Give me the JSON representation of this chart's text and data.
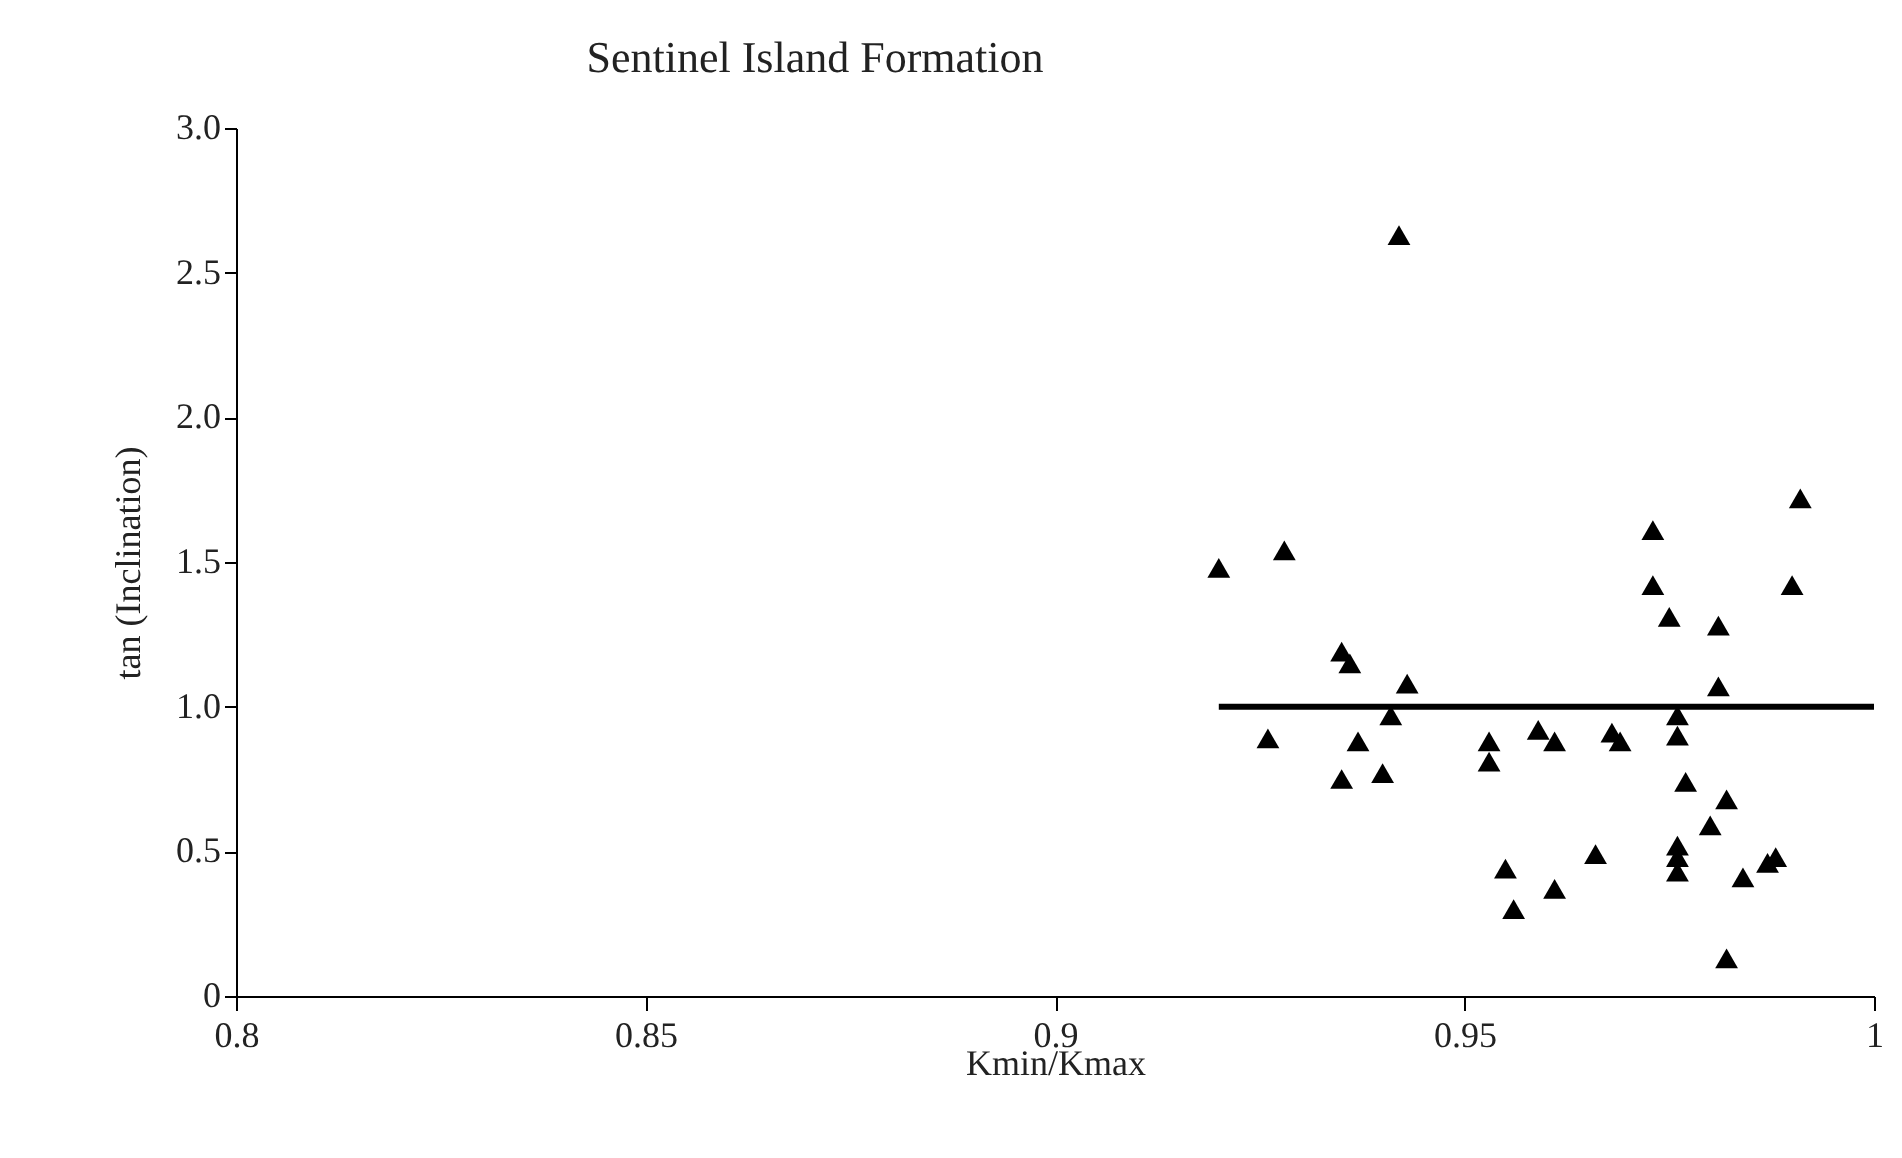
{
  "chart_data": {
    "type": "scatter",
    "title": "Sentinel Island Formation",
    "xlabel": "Kmin/Kmax",
    "ylabel": "tan (Inclination)",
    "xlim": [
      0.8,
      1
    ],
    "xticks": [
      0.8,
      0.85,
      0.9,
      0.95,
      1
    ],
    "ylim": [
      0,
      3
    ],
    "yticks": [
      0,
      {
        "value": 0.5,
        "label": "0.5"
      },
      {
        "value": 1,
        "label": "1.0"
      },
      {
        "value": 1.5,
        "label": "1.5"
      },
      {
        "value": 2,
        "label": "2.0"
      },
      {
        "value": 2.5,
        "label": "2.5"
      },
      {
        "value": 3,
        "label": "3.0"
      }
    ],
    "grid": false,
    "series": [
      {
        "marker": "triangle",
        "color": "#000000",
        "x": [
          0.942,
          0.92,
          0.928,
          0.973,
          0.991,
          0.973,
          0.99,
          0.975,
          0.981,
          0.935,
          0.936,
          0.943,
          0.981,
          0.941,
          0.926,
          0.937,
          0.935,
          0.94,
          0.953,
          0.953,
          0.959,
          0.961,
          0.968,
          0.969,
          0.976,
          0.976,
          0.977,
          0.982,
          0.98,
          0.976,
          0.976,
          0.976,
          0.966,
          0.955,
          0.956,
          0.961,
          0.984,
          0.987,
          0.988,
          0.982
        ],
        "values": [
          2.63,
          1.48,
          1.54,
          1.61,
          1.72,
          1.42,
          1.42,
          1.31,
          1.28,
          1.19,
          1.15,
          1.08,
          1.07,
          0.97,
          0.89,
          0.88,
          0.75,
          0.77,
          0.88,
          0.81,
          0.92,
          0.88,
          0.91,
          0.88,
          0.97,
          0.9,
          0.74,
          0.68,
          0.59,
          0.52,
          0.48,
          0.43,
          0.49,
          0.44,
          0.3,
          0.37,
          0.41,
          0.46,
          0.48,
          0.13
        ]
      },
      {
        "type": "line",
        "color": "#000000",
        "x": [
          0.92,
          1
        ],
        "values": [
          1,
          1
        ]
      }
    ]
  }
}
